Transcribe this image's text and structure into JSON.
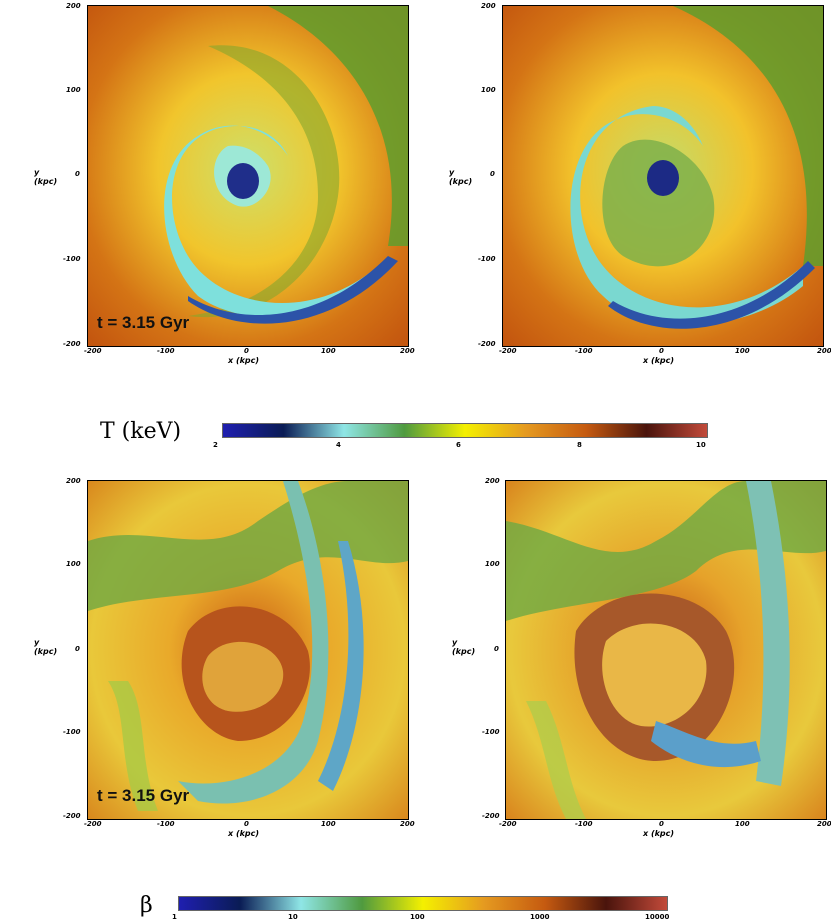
{
  "panels": [
    {
      "id": "t1",
      "time": "t = 3.15 Gyr",
      "scheme": "temp"
    },
    {
      "id": "t2",
      "time": "",
      "scheme": "temp"
    },
    {
      "id": "b1",
      "time": "t = 3.15 Gyr",
      "scheme": "beta"
    },
    {
      "id": "b2",
      "time": "",
      "scheme": "beta"
    }
  ],
  "axes": {
    "x_label": "x (kpc)",
    "y_label_1": "y",
    "y_label_2": "(kpc)",
    "x_ticks": [
      "-200",
      "-100",
      "0",
      "100",
      "200"
    ],
    "y_ticks": [
      "200",
      "100",
      "0",
      "-100",
      "-200"
    ]
  },
  "colorbar_temp": {
    "symbol": "T (keV)",
    "ticks": [
      "2",
      "4",
      "6",
      "8",
      "10"
    ],
    "colors": [
      "#1f1fb0",
      "#0a1c55",
      "#8fe6e6",
      "#4f9a3f",
      "#f4f000",
      "#e59a20",
      "#c55a10",
      "#4a140c",
      "#c24a3a"
    ]
  },
  "colorbar_beta": {
    "symbol": "β",
    "ticks": [
      "1",
      "10",
      "100",
      "1000",
      "10000"
    ],
    "colors": [
      "#1f1fb0",
      "#0a1c55",
      "#8fe6e6",
      "#4f9a3f",
      "#f4f000",
      "#e59a20",
      "#c55a10",
      "#4a140c",
      "#c24a3a"
    ]
  }
}
